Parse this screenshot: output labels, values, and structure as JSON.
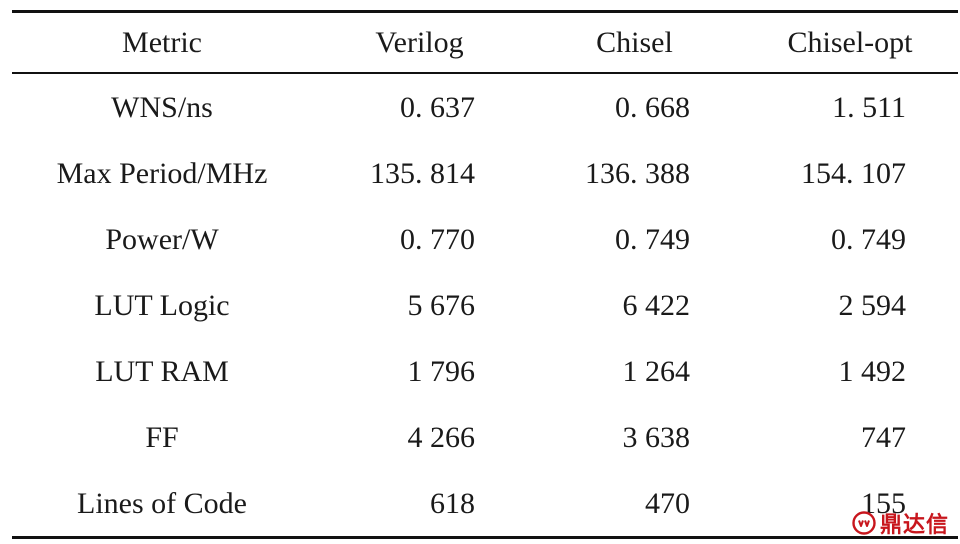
{
  "table": {
    "headers": [
      "Metric",
      "Verilog",
      "Chisel",
      "Chisel-opt"
    ],
    "rows": [
      [
        "WNS/ns",
        "0. 637",
        "0. 668",
        "1. 511"
      ],
      [
        "Max Period/MHz",
        "135. 814",
        "136. 388",
        "154. 107"
      ],
      [
        "Power/W",
        "0. 770",
        "0. 749",
        "0. 749"
      ],
      [
        "LUT Logic",
        "5 676",
        "6 422",
        "2 594"
      ],
      [
        "LUT RAM",
        "1 796",
        "1 264",
        "1 492"
      ],
      [
        "FF",
        "4 266",
        "3 638",
        "747"
      ],
      [
        "Lines of Code",
        "618",
        "470",
        "155"
      ]
    ]
  },
  "watermark": {
    "text": "鼎达信",
    "icon": "brand-logo-icon",
    "color": "#c8161d"
  }
}
